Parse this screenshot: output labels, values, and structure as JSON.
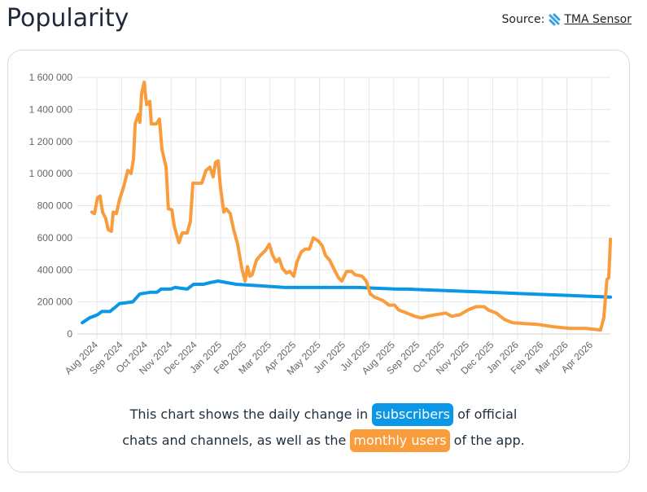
{
  "header": {
    "title": "Popularity",
    "source_label": "Source:",
    "source_link": "TMA Sensor",
    "source_icon": "tma-sensor-logo"
  },
  "caption": {
    "line1_pre": "This chart shows the daily change in",
    "badge_subscribers": "subscribers",
    "line1_post": "of official",
    "line2_pre": "chats and channels, as well as the",
    "badge_monthly": "monthly users",
    "line2_post": "of the app."
  },
  "colors": {
    "subscribers": "#0a97e6",
    "monthly_users": "#f89c3c"
  },
  "chart_data": {
    "type": "line",
    "x_unit": "months since Aug 2024",
    "ylim": [
      0,
      1600000
    ],
    "yticks": [
      0,
      200000,
      400000,
      600000,
      800000,
      1000000,
      1200000,
      1400000,
      1600000
    ],
    "ytick_labels": [
      "0",
      "200 000",
      "400 000",
      "600 000",
      "800 000",
      "1 000 000",
      "1 200 000",
      "1 400 000",
      "1 600 000"
    ],
    "xtick_labels": [
      "Aug 2024",
      "Sep 2024",
      "Oct 2024",
      "Nov 2024",
      "Dec 2024",
      "Jan 2025",
      "Feb 2025",
      "Mar 2025",
      "Apr 2025",
      "May 2025",
      "Jun 2025",
      "Jul 2025",
      "Aug 2025",
      "Sep 2025",
      "Oct 2025",
      "Nov 2025",
      "Dec 2025",
      "Jan 2026",
      "Feb 2026",
      "Mar 2026",
      "Apr 2026"
    ],
    "grid": true,
    "series": [
      {
        "name": "subscribers",
        "color": "#0a97e6",
        "x": [
          -0.59,
          -0.3,
          0.03,
          0.2,
          0.53,
          0.69,
          0.92,
          1.45,
          1.74,
          2.17,
          2.43,
          2.6,
          2.99,
          3.16,
          3.65,
          3.91,
          4.31,
          4.57,
          4.9,
          5.63,
          6.61,
          7.6,
          9.24,
          10.56,
          12.1,
          12.53,
          15.82,
          19.11,
          20.76
        ],
        "y": [
          70000,
          100000,
          120000,
          140000,
          140000,
          160000,
          190000,
          200000,
          250000,
          260000,
          260000,
          280000,
          280000,
          290000,
          280000,
          310000,
          310000,
          320000,
          330000,
          310000,
          300000,
          290000,
          290000,
          290000,
          280000,
          280000,
          260000,
          240000,
          230000
        ]
      },
      {
        "name": "monthly users",
        "color": "#f89c3c",
        "x": [
          -0.2,
          -0.1,
          0.03,
          0.13,
          0.23,
          0.36,
          0.46,
          0.59,
          0.66,
          0.79,
          0.92,
          1.09,
          1.25,
          1.38,
          1.48,
          1.55,
          1.68,
          1.74,
          1.81,
          1.91,
          2.01,
          2.14,
          2.2,
          2.4,
          2.53,
          2.63,
          2.8,
          2.89,
          3.03,
          3.13,
          3.32,
          3.45,
          3.65,
          3.78,
          3.88,
          4.24,
          4.41,
          4.57,
          4.7,
          4.8,
          4.9,
          5.0,
          5.13,
          5.23,
          5.39,
          5.53,
          5.69,
          5.86,
          5.99,
          6.09,
          6.18,
          6.28,
          6.45,
          6.61,
          6.81,
          6.97,
          7.11,
          7.24,
          7.37,
          7.5,
          7.66,
          7.8,
          7.96,
          8.09,
          8.26,
          8.42,
          8.59,
          8.75,
          8.95,
          9.11,
          9.24,
          9.41,
          9.57,
          9.77,
          9.9,
          10.1,
          10.3,
          10.43,
          10.72,
          10.89,
          11.05,
          11.22,
          11.55,
          11.81,
          12.04,
          12.2,
          12.53,
          12.86,
          13.13,
          13.36,
          13.68,
          14.11,
          14.34,
          14.67,
          15.0,
          15.33,
          15.66,
          15.82,
          16.15,
          16.48,
          16.81,
          17.3,
          17.8,
          18.45,
          19.11,
          19.77,
          20.36,
          20.49,
          20.62,
          20.69,
          20.76
        ],
        "y": [
          760000,
          750000,
          850000,
          860000,
          760000,
          720000,
          650000,
          640000,
          760000,
          750000,
          840000,
          920000,
          1020000,
          1000000,
          1090000,
          1310000,
          1370000,
          1320000,
          1500000,
          1570000,
          1430000,
          1450000,
          1310000,
          1310000,
          1340000,
          1150000,
          1040000,
          780000,
          775000,
          670000,
          570000,
          630000,
          630000,
          700000,
          940000,
          940000,
          1020000,
          1040000,
          980000,
          1070000,
          1080000,
          910000,
          760000,
          780000,
          750000,
          650000,
          560000,
          410000,
          330000,
          420000,
          360000,
          370000,
          460000,
          490000,
          520000,
          560000,
          490000,
          450000,
          470000,
          410000,
          380000,
          390000,
          360000,
          450000,
          510000,
          530000,
          530000,
          600000,
          580000,
          550000,
          490000,
          460000,
          410000,
          350000,
          330000,
          390000,
          390000,
          370000,
          360000,
          330000,
          250000,
          230000,
          210000,
          180000,
          180000,
          150000,
          130000,
          110000,
          100000,
          110000,
          120000,
          130000,
          110000,
          120000,
          150000,
          170000,
          170000,
          150000,
          130000,
          90000,
          70000,
          65000,
          60000,
          45000,
          35000,
          35000,
          25000,
          100000,
          340000,
          350000,
          590000
        ]
      }
    ]
  }
}
